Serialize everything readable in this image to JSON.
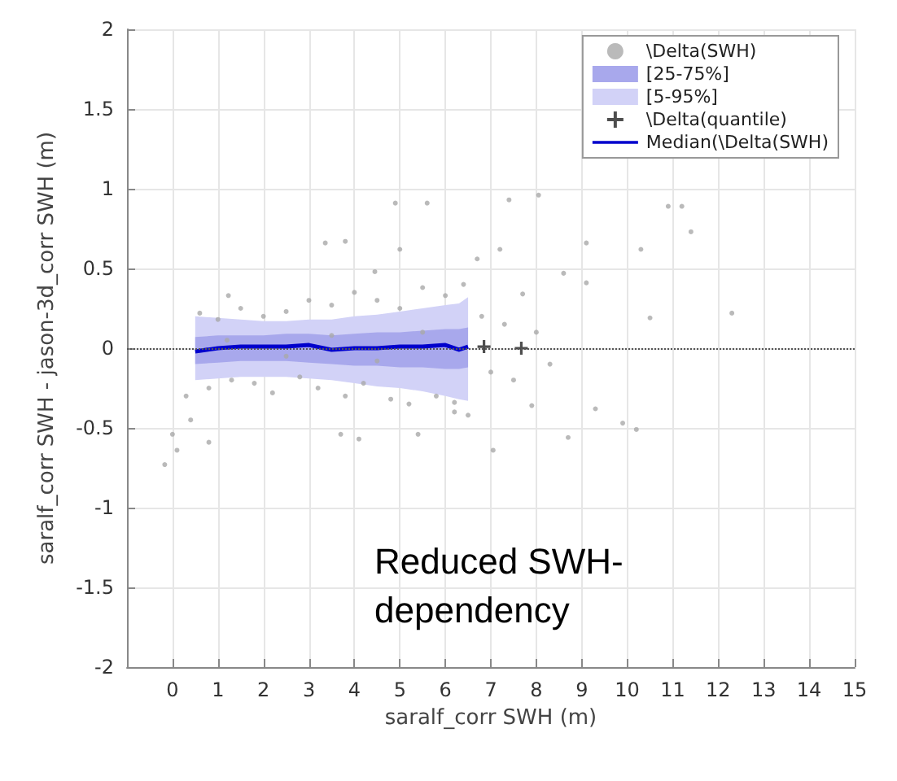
{
  "chart_data": {
    "type": "scatter",
    "xlabel": "saralf_corr SWH (m)",
    "ylabel": "saralf_corr SWH - jason-3d_corr SWH (m)",
    "xlim": [
      -1,
      15
    ],
    "xticks": [
      0,
      1,
      2,
      3,
      4,
      5,
      6,
      7,
      8,
      9,
      10,
      11,
      12,
      13,
      14,
      15
    ],
    "ylim": [
      -2,
      2
    ],
    "yticks": [
      -2,
      -1.5,
      -1,
      -0.5,
      0,
      0.5,
      1,
      1.5,
      2
    ],
    "grid": true,
    "legend": "top right",
    "annotations": [
      "Reduced SWH-\ndependency"
    ],
    "ref_lines": [
      {
        "axis": "y",
        "value": 0,
        "color": "#555555",
        "line_style": "dotted"
      }
    ],
    "series": [
      {
        "name": "\\Delta(SWH)",
        "color": "#a9a9a9",
        "marker": "circle",
        "x": [
          4.9,
          5.6,
          7.4,
          8.05,
          10.9,
          11.2,
          11.4,
          3.36,
          3.8,
          7.2,
          9.1,
          10.3,
          5.0,
          6.7,
          8.6,
          10.5,
          12.3,
          9.1,
          7.7,
          4.45,
          1.23,
          0,
          -0.17,
          0.1,
          0.8,
          3.7,
          4.1,
          5.4,
          7.05,
          8.7,
          9.3,
          9.9,
          10.2,
          6.2,
          7.9,
          0.6,
          0.8,
          1,
          1.3,
          1.5,
          1.8,
          2,
          2.2,
          2.5,
          2.8,
          3,
          3.2,
          3.5,
          3.8,
          4,
          4.2,
          4.5,
          4.8,
          5,
          5.2,
          5.5,
          5.8,
          6,
          6.2,
          6.4,
          6.5,
          6.8,
          7,
          7.3,
          7.5,
          8,
          8.3,
          1.2,
          2.5,
          3.5,
          4.5,
          5.5,
          0.3,
          0.4
        ],
        "values": [
          0.91,
          0.91,
          0.93,
          0.96,
          0.89,
          0.89,
          0.73,
          0.66,
          0.67,
          0.62,
          0.66,
          0.62,
          0.62,
          0.56,
          0.47,
          0.19,
          0.22,
          0.41,
          0.34,
          0.48,
          0.33,
          -0.54,
          -0.73,
          -0.64,
          -0.59,
          -0.54,
          -0.57,
          -0.54,
          -0.64,
          -0.56,
          -0.38,
          -0.47,
          -0.51,
          -0.34,
          -0.36,
          0.22,
          -0.25,
          0.18,
          -0.2,
          0.25,
          -0.22,
          0.2,
          -0.28,
          0.23,
          -0.18,
          0.3,
          -0.25,
          0.27,
          -0.3,
          0.35,
          -0.22,
          0.3,
          -0.32,
          0.25,
          -0.35,
          0.38,
          -0.3,
          0.33,
          -0.4,
          0.4,
          -0.42,
          0.2,
          -0.15,
          0.15,
          -0.2,
          0.1,
          -0.1,
          0.05,
          -0.05,
          0.08,
          -0.08,
          0.1,
          -0.3,
          -0.45
        ]
      },
      {
        "name": "[25-75%]",
        "type": "line",
        "color": "#a8a8ec",
        "x": [
          0.5,
          1,
          1.5,
          2,
          2.5,
          3,
          3.5,
          4,
          4.5,
          5,
          5.5,
          6,
          6.3,
          6.5
        ],
        "values": [
          null,
          null,
          null,
          null,
          null,
          null,
          null,
          null,
          null,
          null,
          null,
          null,
          null,
          null
        ],
        "lower": [
          -0.1,
          -0.09,
          -0.08,
          -0.08,
          -0.08,
          -0.09,
          -0.1,
          -0.11,
          -0.11,
          -0.12,
          -0.12,
          -0.13,
          -0.13,
          -0.12
        ],
        "upper": [
          0.07,
          0.08,
          0.08,
          0.08,
          0.09,
          0.09,
          0.08,
          0.09,
          0.1,
          0.1,
          0.11,
          0.12,
          0.12,
          0.13
        ]
      },
      {
        "name": "[5-95%]",
        "type": "line",
        "color": "#d2d2f7",
        "x": [
          0.5,
          1,
          1.5,
          2,
          2.5,
          3,
          3.5,
          4,
          4.5,
          5,
          5.5,
          6,
          6.3,
          6.5
        ],
        "values": [
          null,
          null,
          null,
          null,
          null,
          null,
          null,
          null,
          null,
          null,
          null,
          null,
          null,
          null
        ],
        "lower": [
          -0.2,
          -0.19,
          -0.18,
          -0.18,
          -0.18,
          -0.19,
          -0.2,
          -0.22,
          -0.24,
          -0.25,
          -0.27,
          -0.3,
          -0.32,
          -0.33
        ],
        "upper": [
          0.2,
          0.19,
          0.18,
          0.17,
          0.17,
          0.18,
          0.18,
          0.2,
          0.21,
          0.23,
          0.25,
          0.27,
          0.28,
          0.32
        ]
      },
      {
        "name": "\\Delta(quantile)",
        "color": "#222222",
        "marker": "cross",
        "x": [
          6.85,
          7.67
        ],
        "values": [
          0.01,
          0
        ]
      },
      {
        "name": "Median(\\Delta(SWH)",
        "type": "line",
        "color": "#0000cc",
        "marker": "none",
        "line_style": "solid",
        "x": [
          0.5,
          1,
          1.5,
          2,
          2.5,
          3,
          3.5,
          4,
          4.5,
          5,
          5.5,
          6,
          6.3,
          6.5
        ],
        "values": [
          -0.02,
          0,
          0.01,
          0.01,
          0.01,
          0.02,
          -0.01,
          0,
          0,
          0.01,
          0.01,
          0.02,
          -0.01,
          0.01
        ]
      }
    ]
  }
}
